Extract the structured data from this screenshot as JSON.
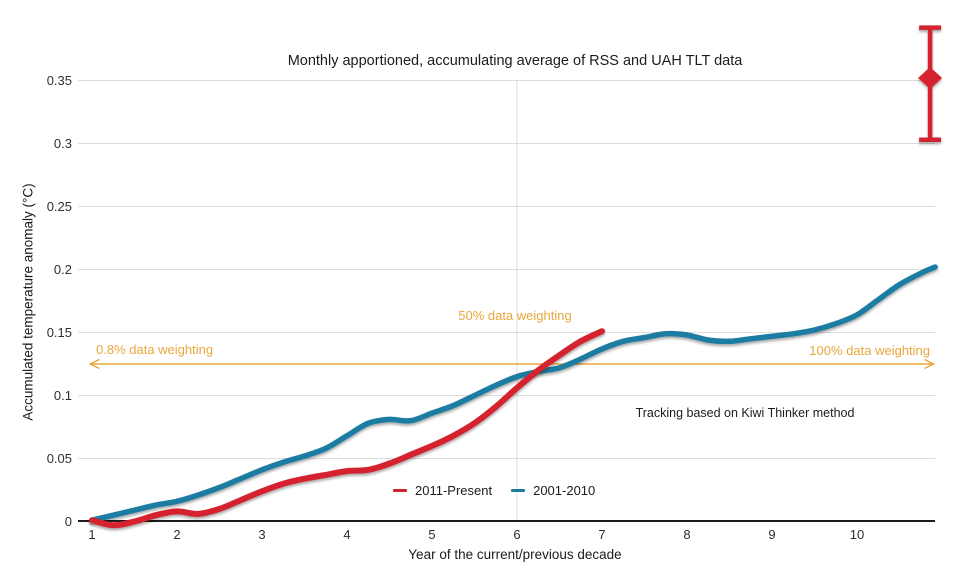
{
  "title": "Monthly apportioned, accumulating average of RSS and UAH TLT data",
  "colors": {
    "red": "#d4212d",
    "blue": "#1a7ba1",
    "orange": "#e9a73c",
    "grid": "#dedede",
    "axis": "#1c1c1c",
    "text": "#2e2e2e"
  },
  "y_axis": {
    "label": "Accumulated temperature anomaly (°C)",
    "tick_labels": [
      "0",
      "0.05",
      "0.1",
      "0.15",
      "0.2",
      "0.25",
      "0.3",
      "0.35"
    ]
  },
  "x_axis": {
    "label": "Year of the current/previous decade",
    "tick_labels": [
      "1",
      "2",
      "3",
      "4",
      "5",
      "6",
      "7",
      "8",
      "9",
      "10"
    ]
  },
  "annotations": {
    "weight_left": "0.8% data weighting",
    "weight_mid": "50% data weighting",
    "weight_right": "100% data weighting",
    "note": "Tracking based on Kiwi Thinker method"
  },
  "legend": {
    "items": [
      {
        "label": "2011-Present",
        "color": "#d4212d"
      },
      {
        "label": "2001-2010",
        "color": "#1a7ba1"
      }
    ]
  },
  "chart_data": {
    "type": "line",
    "title": "Monthly apportioned, accumulating average of RSS and UAH TLT data",
    "xlabel": "Year of the current/previous decade",
    "ylabel": "Accumulated temperature anomaly (°C)",
    "xlim": [
      1,
      10.92
    ],
    "ylim": [
      0,
      0.39
    ],
    "x_ticks": [
      1,
      2,
      3,
      4,
      5,
      6,
      7,
      8,
      9,
      10
    ],
    "y_ticks": [
      0,
      0.05,
      0.1,
      0.15,
      0.2,
      0.25,
      0.3,
      0.35
    ],
    "grid": "horizontal gridlines at each y tick; one vertical gridline at x=6",
    "legend_position": "bottom-center",
    "series": [
      {
        "name": "2011-Present",
        "color": "#d4212d",
        "x": [
          1,
          1.25,
          1.5,
          1.75,
          2,
          2.25,
          2.5,
          2.75,
          3,
          3.25,
          3.5,
          3.75,
          4,
          4.25,
          4.5,
          4.75,
          5,
          5.25,
          5.5,
          5.75,
          6,
          6.25,
          6.5,
          6.75,
          7
        ],
        "y": [
          0.001,
          -0.003,
          0.0,
          0.005,
          0.008,
          0.006,
          0.01,
          0.017,
          0.024,
          0.03,
          0.034,
          0.037,
          0.04,
          0.041,
          0.046,
          0.053,
          0.06,
          0.068,
          0.078,
          0.091,
          0.106,
          0.12,
          0.132,
          0.143,
          0.151
        ]
      },
      {
        "name": "2001-2010",
        "color": "#1a7ba1",
        "x": [
          1,
          1.25,
          1.5,
          1.75,
          2,
          2.25,
          2.5,
          2.75,
          3,
          3.25,
          3.5,
          3.75,
          4,
          4.25,
          4.5,
          4.75,
          5,
          5.25,
          5.5,
          5.75,
          6,
          6.25,
          6.5,
          6.75,
          7,
          7.25,
          7.5,
          7.75,
          8,
          8.25,
          8.5,
          8.75,
          9,
          9.25,
          9.5,
          9.75,
          10,
          10.25,
          10.5,
          10.75,
          10.92
        ],
        "y": [
          0.001,
          0.005,
          0.009,
          0.013,
          0.016,
          0.021,
          0.027,
          0.034,
          0.041,
          0.047,
          0.052,
          0.058,
          0.068,
          0.078,
          0.081,
          0.08,
          0.086,
          0.092,
          0.1,
          0.108,
          0.115,
          0.119,
          0.122,
          0.129,
          0.137,
          0.143,
          0.146,
          0.149,
          0.148,
          0.144,
          0.143,
          0.145,
          0.147,
          0.149,
          0.152,
          0.157,
          0.164,
          0.176,
          0.188,
          0.197,
          0.202
        ]
      }
    ],
    "error_bar": {
      "x": 10.86,
      "high": 0.392,
      "center": 0.352,
      "low": 0.303,
      "color": "#d4212d"
    },
    "weighting_arrow": {
      "y": 0.125,
      "x_start": 0.98,
      "x_end": 10.9,
      "color": "#e9a73c",
      "double_headed": true
    },
    "vertical_gridline_x": 6
  }
}
